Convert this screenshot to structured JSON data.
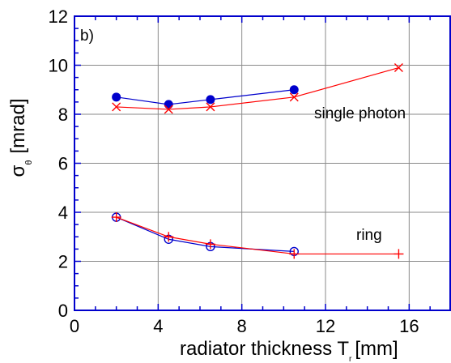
{
  "chart_data": {
    "type": "line",
    "panel_label": "b)",
    "xlabel": "radiator thickness T",
    "xlabel_subscript": "r",
    "xlabel_unit": "[mm]",
    "ylabel": "σ",
    "ylabel_subscript": "θ",
    "ylabel_unit": "[mrad]",
    "xlim": [
      0,
      18
    ],
    "ylim": [
      0,
      12
    ],
    "xticks": [
      "0",
      "4",
      "8",
      "12",
      "16"
    ],
    "yticks": [
      "0",
      "2",
      "4",
      "6",
      "8",
      "10",
      "12"
    ],
    "grid": true,
    "series": [
      {
        "group": "single photon",
        "marker": "filled-circle",
        "color": "#0000cc",
        "x": [
          2,
          4.5,
          6.5,
          10.5
        ],
        "y": [
          8.7,
          8.4,
          8.6,
          9.0
        ]
      },
      {
        "group": "single photon",
        "marker": "x",
        "color": "#ff0000",
        "x": [
          2,
          4.5,
          6.5,
          10.5,
          15.5
        ],
        "y": [
          8.3,
          8.2,
          8.3,
          8.7,
          9.9
        ]
      },
      {
        "group": "ring",
        "marker": "open-circle",
        "color": "#0000cc",
        "x": [
          2,
          4.5,
          6.5,
          10.5
        ],
        "y": [
          3.8,
          2.9,
          2.6,
          2.4
        ]
      },
      {
        "group": "ring",
        "marker": "plus",
        "color": "#ff0000",
        "x": [
          2,
          4.5,
          6.5,
          10.5,
          15.5
        ],
        "y": [
          3.8,
          3.0,
          2.7,
          2.3,
          2.3
        ]
      }
    ],
    "annotations": [
      "single photon",
      "ring"
    ]
  }
}
